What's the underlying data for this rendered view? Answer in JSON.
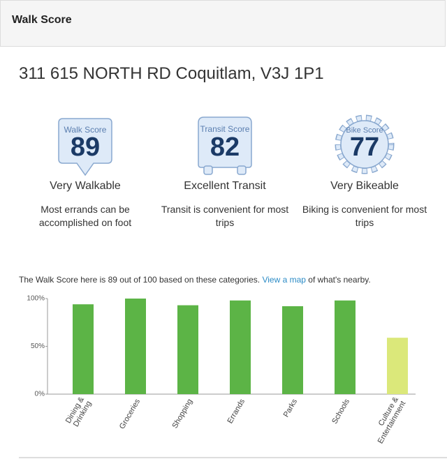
{
  "header": {
    "title": "Walk Score"
  },
  "address": "311 615 NORTH RD Coquitlam, V3J 1P1",
  "scores": [
    {
      "badge": "Walk Score",
      "score": 89,
      "label": "Very Walkable",
      "description": "Most errands can be accomplished on foot"
    },
    {
      "badge": "Transit Score",
      "score": 82,
      "label": "Excellent Transit",
      "description": "Transit is convenient for most trips"
    },
    {
      "badge": "Bike Score",
      "score": 77,
      "label": "Very Bikeable",
      "description": "Biking is convenient for most trips"
    }
  ],
  "intro": {
    "before": "The Walk Score here is 89 out of 100 based on these categories.",
    "link": "View a map",
    "after": "of what's nearby."
  },
  "chart_data": {
    "type": "bar",
    "categories": [
      "Dining & Drinking",
      "Groceries",
      "Shopping",
      "Errands",
      "Parks",
      "Schools",
      "Culture & Entertainment"
    ],
    "values": [
      94,
      100,
      93,
      98,
      92,
      98,
      59
    ],
    "colors": [
      "#5cb446",
      "#5cb446",
      "#5cb446",
      "#5cb446",
      "#5cb446",
      "#5cb446",
      "#dbe87a"
    ],
    "ylim": [
      0,
      100
    ],
    "yticks": [
      {
        "value": 0,
        "label": "0%"
      },
      {
        "value": 50,
        "label": "50%"
      },
      {
        "value": 100,
        "label": "100%"
      }
    ]
  }
}
